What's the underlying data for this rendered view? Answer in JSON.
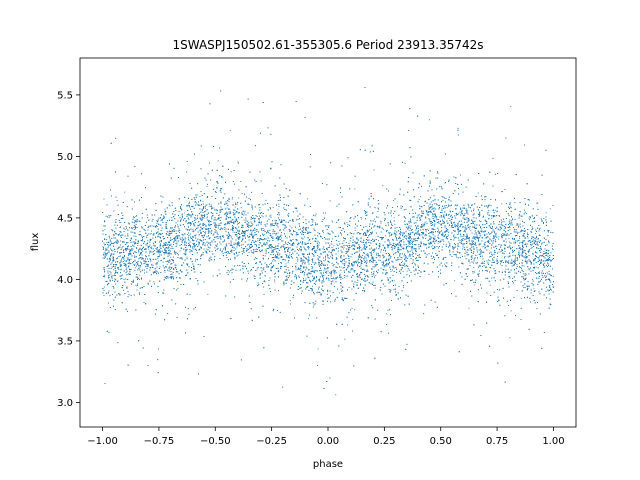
{
  "chart_data": {
    "type": "scatter",
    "title": "1SWASPJ150502.61-355305.6 Period 23913.35742s",
    "xlabel": "phase",
    "ylabel": "flux",
    "xlim": [
      -1.1,
      1.1
    ],
    "ylim": [
      2.8,
      5.8
    ],
    "xticks": [
      -1.0,
      -0.75,
      -0.5,
      -0.25,
      0.0,
      0.25,
      0.5,
      0.75,
      1.0
    ],
    "xtick_labels": [
      "−1.00",
      "−0.75",
      "−0.50",
      "−0.25",
      "0.00",
      "0.25",
      "0.50",
      "0.75",
      "1.00"
    ],
    "yticks": [
      3.0,
      3.5,
      4.0,
      4.5,
      5.0,
      5.5
    ],
    "ytick_labels": [
      "3.0",
      "3.5",
      "4.0",
      "4.5",
      "5.0",
      "5.5"
    ],
    "grid": false,
    "legend": "none",
    "marker_color": "#1f77b4",
    "series": [
      {
        "phase_range": [
          -1.0,
          1.0
        ],
        "flux_min": 2.93,
        "flux_max": 5.68,
        "point_count_approx": 40000,
        "trend": [
          {
            "phase": -1.0,
            "flux": 4.18
          },
          {
            "phase": -0.75,
            "flux": 4.25
          },
          {
            "phase": -0.5,
            "flux": 4.42
          },
          {
            "phase": -0.25,
            "flux": 4.3
          },
          {
            "phase": 0.0,
            "flux": 4.15
          },
          {
            "phase": 0.25,
            "flux": 4.25
          },
          {
            "phase": 0.5,
            "flux": 4.42
          },
          {
            "phase": 0.75,
            "flux": 4.3
          },
          {
            "phase": 1.0,
            "flux": 4.15
          }
        ]
      }
    ]
  }
}
